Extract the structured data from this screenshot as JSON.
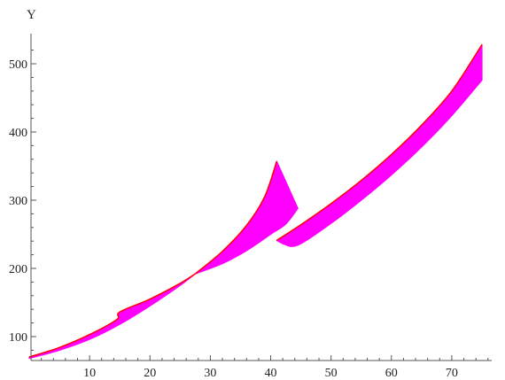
{
  "chart_data": {
    "type": "area",
    "title": "",
    "xlabel": "",
    "ylabel": "Y",
    "xlim": [
      0,
      77
    ],
    "ylim": [
      65,
      540
    ],
    "x_ticks": [
      10,
      20,
      30,
      40,
      50,
      60,
      70
    ],
    "y_ticks": [
      100,
      200,
      300,
      400,
      500
    ],
    "grid": false,
    "legend": "none",
    "color_scheme": "rainbow",
    "colors": {
      "band_start": "#ff0000",
      "band_end": "#ff00ff",
      "axis": "#555555"
    },
    "series": [
      {
        "segment": 1,
        "upper": {
          "x": [
            0,
            5,
            10,
            14.5,
            15,
            20,
            25,
            27.5
          ],
          "y": [
            70,
            84,
            103,
            125,
            136,
            155,
            178,
            192
          ]
        },
        "lower": {
          "x": [
            0,
            5,
            10,
            15,
            20,
            25,
            27.5
          ],
          "y": [
            68,
            80,
            96,
            118,
            145,
            175,
            192
          ]
        }
      },
      {
        "segment": 2,
        "upper": {
          "x": [
            27.5,
            32,
            36,
            39,
            41
          ],
          "y": [
            192,
            225,
            263,
            305,
            357
          ]
        },
        "lower": {
          "x": [
            27.5,
            32,
            36,
            40,
            42.5,
            44.5
          ],
          "y": [
            192,
            207,
            226,
            250,
            265,
            288
          ]
        }
      },
      {
        "segment": 3,
        "upper": {
          "x": [
            41,
            45,
            50,
            55,
            60,
            65,
            70,
            75
          ],
          "y": [
            241,
            264,
            295,
            329,
            367,
            410,
            460,
            528
          ]
        },
        "lower": {
          "x": [
            42,
            44.5,
            50,
            55,
            60,
            65,
            70,
            75
          ],
          "y": [
            236,
            234,
            266,
            300,
            337,
            378,
            424,
            476
          ]
        }
      }
    ]
  }
}
